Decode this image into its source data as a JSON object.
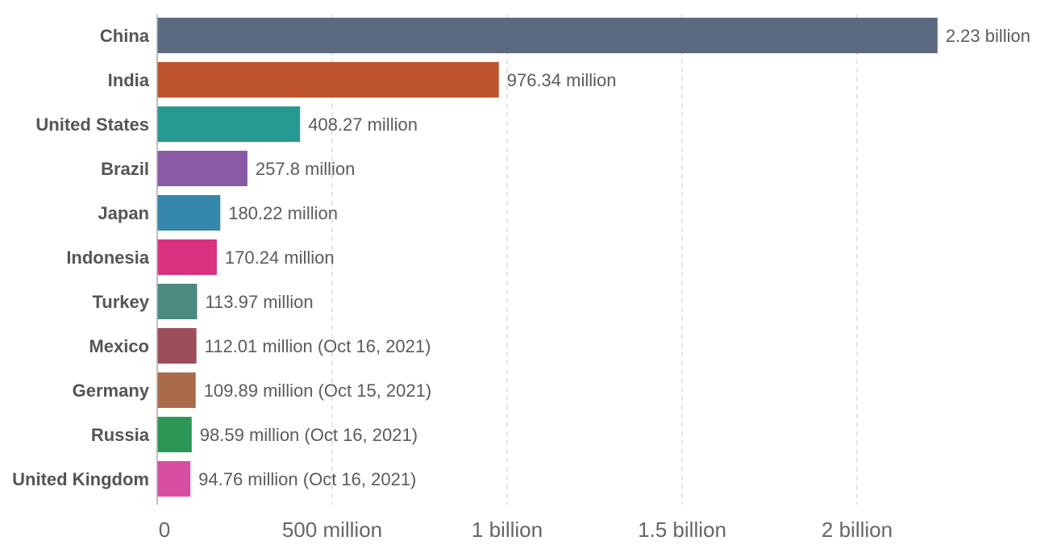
{
  "chart_data": {
    "type": "bar",
    "orientation": "horizontal",
    "title": "",
    "xlabel": "",
    "ylabel": "",
    "xlim": [
      0,
      2400000000
    ],
    "grid": true,
    "categories": [
      "China",
      "India",
      "United States",
      "Brazil",
      "Japan",
      "Indonesia",
      "Turkey",
      "Mexico",
      "Germany",
      "Russia",
      "United Kingdom"
    ],
    "values": [
      2230000000,
      976340000,
      408270000,
      257800000,
      180220000,
      170240000,
      113970000,
      112010000,
      109890000,
      98590000,
      94760000
    ],
    "value_labels": [
      "2.23 billion",
      "976.34 million",
      "408.27 million",
      "257.8 million",
      "180.22 million",
      "170.24 million",
      "113.97 million",
      "112.01 million (Oct 16, 2021)",
      "109.89 million (Oct 15, 2021)",
      "98.59 million (Oct 16, 2021)",
      "94.76 million (Oct 16, 2021)"
    ],
    "colors": [
      "#5b6a80",
      "#bd542e",
      "#269a92",
      "#895ba4",
      "#3486aa",
      "#d8317f",
      "#4b8a80",
      "#9b4d58",
      "#a96b4a",
      "#2c9656",
      "#d84ea0"
    ],
    "x_ticks": [
      {
        "value": 0,
        "label": "0"
      },
      {
        "value": 500000000,
        "label": "500 million"
      },
      {
        "value": 1000000000,
        "label": "1 billion"
      },
      {
        "value": 1500000000,
        "label": "1.5 billion"
      },
      {
        "value": 2000000000,
        "label": "2 billion"
      }
    ]
  }
}
